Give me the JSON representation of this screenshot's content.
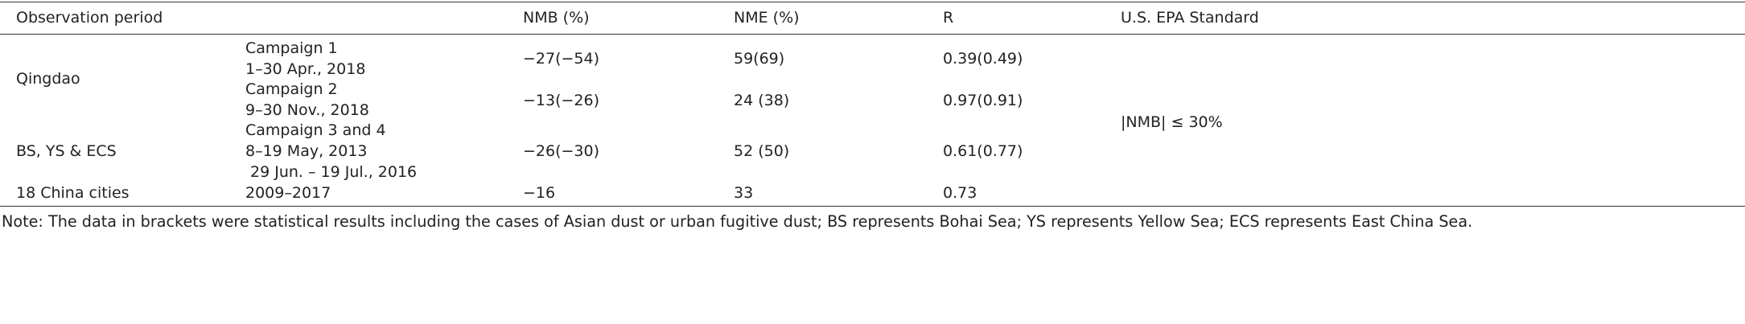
{
  "table": {
    "header": [
      "Observation period",
      "NMB (%)",
      "NME (%)",
      "R",
      "U.S. EPA Standard"
    ],
    "rows": [
      {
        "site": "Qingdao",
        "campaigns": [
          {
            "name": "Campaign 1",
            "period": [
              "1–30 Apr., 2018"
            ],
            "nmb": "−27(−54)",
            "nme": "59(69)",
            "r": "0.39(0.49)"
          },
          {
            "name": "Campaign 2",
            "period": [
              "9–30 Nov., 2018"
            ],
            "nmb": "−13(−26)",
            "nme": "24 (38)",
            "r": "0.97(0.91)"
          }
        ]
      },
      {
        "site": "BS, YS & ECS",
        "campaigns": [
          {
            "name": "Campaign 3 and 4",
            "period": [
              "8–19 May, 2013",
              "29 Jun. – 19 Jul., 2016"
            ],
            "nmb": "−26(−30)",
            "nme": "52 (50)",
            "r": "0.61(0.77)"
          }
        ]
      },
      {
        "site": "18 China cities",
        "campaigns": [
          {
            "period": [
              "2009–2017"
            ],
            "nmb": "−16",
            "nme": "33",
            "r": "0.73"
          }
        ]
      }
    ],
    "standard": "|NMB| ≤ 30%",
    "note": "Note: The data in brackets were statistical results including the cases of Asian dust or urban fugitive dust; BS represents Bohai Sea; YS represents Yellow Sea; ECS represents East China Sea."
  }
}
